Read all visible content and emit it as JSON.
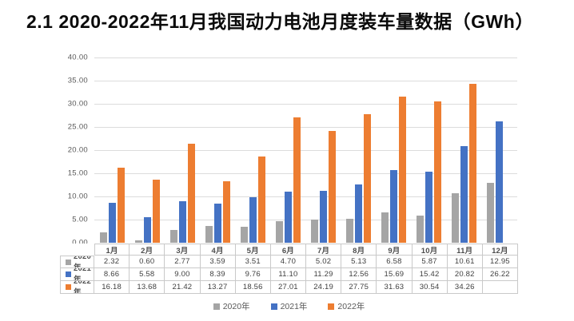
{
  "title": "2.1 2020-2022年11月我国动力电池月度装车量数据（GWh）",
  "chart_data": {
    "type": "bar",
    "title": "2.1 2020-2022年11月我国动力电池月度装车量数据（GWh）",
    "xlabel": "",
    "ylabel": "",
    "categories": [
      "1月",
      "2月",
      "3月",
      "4月",
      "5月",
      "6月",
      "7月",
      "8月",
      "9月",
      "10月",
      "11月",
      "12月"
    ],
    "series": [
      {
        "name": "2020年",
        "color": "#A5A5A5",
        "values": [
          2.32,
          0.6,
          2.77,
          3.59,
          3.51,
          4.7,
          5.02,
          5.13,
          6.58,
          5.87,
          10.61,
          12.95
        ]
      },
      {
        "name": "2021年",
        "color": "#4472C4",
        "values": [
          8.66,
          5.58,
          9.0,
          8.39,
          9.76,
          11.1,
          11.29,
          12.56,
          15.69,
          15.42,
          20.82,
          26.22
        ]
      },
      {
        "name": "2022年",
        "color": "#ED7D31",
        "values": [
          16.18,
          13.68,
          21.42,
          13.27,
          18.56,
          27.01,
          24.19,
          27.75,
          31.63,
          30.54,
          34.26,
          null
        ]
      }
    ],
    "ylim": [
      0,
      40
    ],
    "yticks": [
      {
        "value": 40,
        "label": "40.00"
      },
      {
        "value": 35,
        "label": "35.00"
      },
      {
        "value": 30,
        "label": "30.00"
      },
      {
        "value": 25,
        "label": "25.00"
      },
      {
        "value": 20,
        "label": "20.00"
      },
      {
        "value": 15,
        "label": "15.00"
      },
      {
        "value": 10,
        "label": "10.00"
      },
      {
        "value": 5,
        "label": "5.00"
      },
      {
        "value": 0,
        "label": "0.00"
      }
    ],
    "grid": true,
    "legend_position": "bottom",
    "data_table_shown": true
  },
  "colors": {
    "background": "#FFFFFF",
    "gridline": "#DCDCDC",
    "table_border": "#C9C9C9",
    "axis_text": "#595959",
    "table_text": "#404040",
    "title_text": "#0A0A0A"
  }
}
